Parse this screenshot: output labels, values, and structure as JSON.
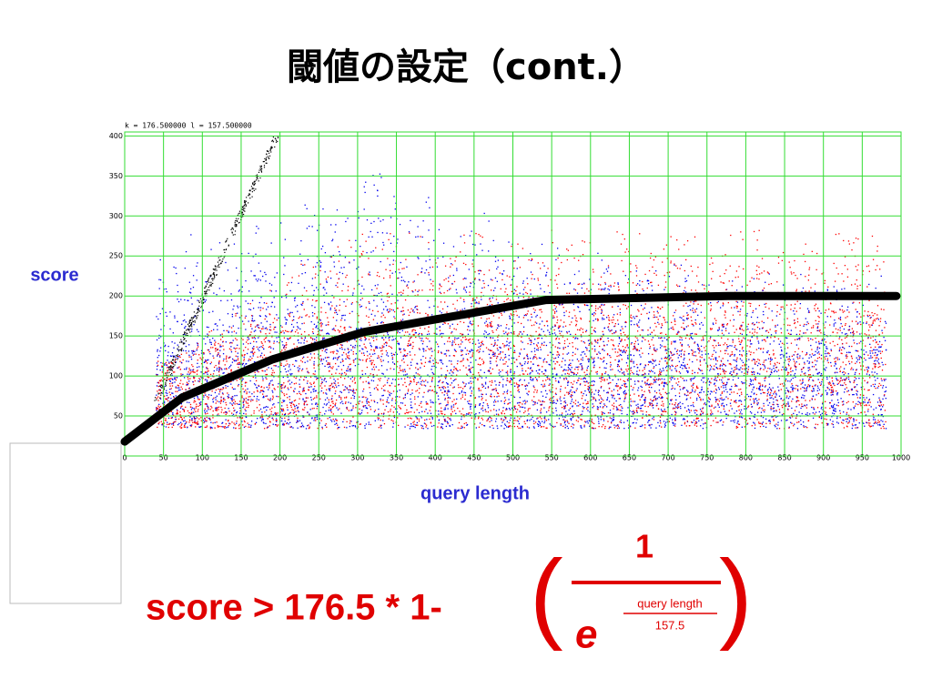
{
  "title": "閾値の設定（cont.）",
  "chart_data": {
    "type": "scatter",
    "header": "k = 176.500000  l = 157.500000",
    "ylabel": "score",
    "xlabel": "query length",
    "xlim": [
      0,
      1000
    ],
    "ylim": [
      0,
      405
    ],
    "xticks": [
      0,
      50,
      100,
      150,
      200,
      250,
      300,
      350,
      400,
      450,
      500,
      550,
      600,
      650,
      700,
      750,
      800,
      850,
      900,
      950,
      1000
    ],
    "yticks": [
      50,
      100,
      150,
      200,
      250,
      300,
      350,
      400
    ],
    "grid": true,
    "grid_color": "#33dd33",
    "series": [
      {
        "color": "#000000",
        "x": [
          0,
          74,
          191,
          308,
          543,
          777,
          994
        ],
        "values": [
          18,
          73,
          121,
          155,
          195,
          200,
          200
        ]
      }
    ]
  },
  "formula": {
    "lhs": "score > 176.5 * 1-",
    "open": "(",
    "numerator": "1",
    "base": "e",
    "exp_num": "query length",
    "exp_den": "157.5",
    "close": ")"
  }
}
